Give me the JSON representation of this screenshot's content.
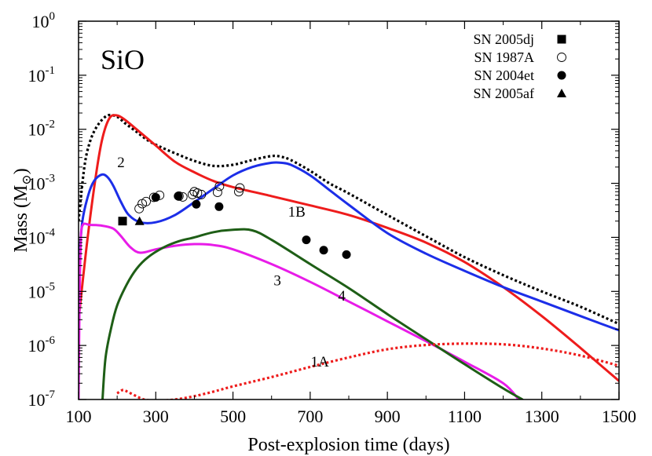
{
  "chart_data": {
    "type": "line",
    "title": "SiO",
    "xlabel": "Post-explosion time (days)",
    "ylabel": "Mass (M",
    "ylabel_sub": "⊙",
    "ylabel_close": ")",
    "xscale": "linear",
    "yscale": "log",
    "xlim": [
      100,
      1500
    ],
    "ylim_exp": [
      -7,
      0
    ],
    "x_ticks": [
      100,
      300,
      500,
      700,
      900,
      1100,
      1300,
      1500
    ],
    "y_ticks": [
      {
        "exp": 0,
        "base": "10",
        "sup": "0"
      },
      {
        "exp": -1,
        "base": "10",
        "sup": "-1"
      },
      {
        "exp": -2,
        "base": "10",
        "sup": "-2"
      },
      {
        "exp": -3,
        "base": "10",
        "sup": "-3"
      },
      {
        "exp": -4,
        "base": "10",
        "sup": "-4"
      },
      {
        "exp": -5,
        "base": "10",
        "sup": "-5"
      },
      {
        "exp": -6,
        "base": "10",
        "sup": "-6"
      },
      {
        "exp": -7,
        "base": "10",
        "sup": "-7"
      }
    ],
    "series": [
      {
        "name": "total",
        "color": "#000000",
        "style": "dotted",
        "x": [
          100,
          115,
          130,
          150,
          175,
          200,
          220,
          250,
          280,
          310,
          350,
          400,
          450,
          500,
          550,
          600,
          625,
          650,
          700,
          750,
          800,
          900,
          1000,
          1100,
          1200,
          1300,
          1400,
          1500
        ],
        "y": [
          0.0002,
          0.002,
          0.006,
          0.012,
          0.018,
          0.017,
          0.013,
          0.009,
          0.0062,
          0.0048,
          0.0036,
          0.0026,
          0.0021,
          0.0022,
          0.0027,
          0.0032,
          0.0031,
          0.0027,
          0.0017,
          0.001,
          0.00065,
          0.00026,
          0.000105,
          4.3e-05,
          2e-05,
          1e-05,
          5.2e-06,
          2.5e-06
        ]
      },
      {
        "name": "red",
        "color": "#ee1c1c",
        "style": "solid",
        "x": [
          100,
          120,
          140,
          160,
          180,
          200,
          220,
          250,
          300,
          350,
          400,
          450,
          500,
          600,
          700,
          800,
          900,
          1000,
          1100,
          1200,
          1300,
          1400,
          1500
        ],
        "y": [
          3e-06,
          6e-05,
          0.0008,
          0.006,
          0.016,
          0.018,
          0.015,
          0.01,
          0.005,
          0.0025,
          0.0016,
          0.0011,
          0.00085,
          0.00058,
          0.00039,
          0.00026,
          0.00015,
          8e-05,
          3.5e-05,
          1.2e-05,
          3.5e-06,
          9e-07,
          2.2e-07
        ]
      },
      {
        "name": "1B",
        "color": "#1c2ee8",
        "style": "solid",
        "x": [
          100,
          110,
          125,
          140,
          160,
          175,
          190,
          210,
          230,
          260,
          300,
          350,
          400,
          450,
          500,
          550,
          600,
          625,
          650,
          700,
          750,
          800,
          900,
          1000,
          1100,
          1200,
          1300,
          1400,
          1500
        ],
        "y": [
          3e-05,
          0.0002,
          0.0006,
          0.0011,
          0.00145,
          0.0013,
          0.0009,
          0.00045,
          0.00026,
          0.00019,
          0.00019,
          0.00026,
          0.00045,
          0.0008,
          0.0014,
          0.002,
          0.0024,
          0.0024,
          0.0022,
          0.0014,
          0.00075,
          0.0004,
          0.00012,
          5e-05,
          2.4e-05,
          1.2e-05,
          6.5e-06,
          3.5e-06,
          1.9e-06
        ]
      },
      {
        "name": "3",
        "color": "#e81ce8",
        "style": "solid",
        "x": [
          100,
          102,
          105,
          110,
          130,
          160,
          190,
          210,
          235,
          260,
          300,
          350,
          400,
          450,
          500,
          600,
          700,
          800,
          900,
          1000,
          1100,
          1200,
          1240
        ],
        "y": [
          1e-07,
          3e-06,
          6e-05,
          0.000165,
          0.00017,
          0.000165,
          0.000145,
          0.000105,
          6.5e-05,
          5.2e-05,
          6e-05,
          7e-05,
          7.5e-05,
          7.2e-05,
          6e-05,
          3.2e-05,
          1.5e-05,
          6.5e-06,
          2.8e-06,
          1.2e-06,
          5e-07,
          2e-07,
          1e-07
        ]
      },
      {
        "name": "4",
        "color": "#1e5e16",
        "style": "solid",
        "x": [
          162,
          170,
          185,
          200,
          225,
          250,
          280,
          320,
          360,
          400,
          450,
          500,
          550,
          600,
          700,
          800,
          900,
          1000,
          1100,
          1200,
          1250
        ],
        "y": [
          1e-07,
          6e-07,
          2.2e-06,
          5.5e-06,
          1.35e-05,
          2.6e-05,
          4.3e-05,
          6.5e-05,
          8.5e-05,
          0.0001,
          0.000125,
          0.000138,
          0.000135,
          9e-05,
          3.2e-05,
          1.15e-05,
          3.8e-06,
          1.3e-06,
          4.5e-07,
          1.6e-07,
          1e-07
        ]
      },
      {
        "name": "1A",
        "color": "#ee1c1c",
        "style": "dotted",
        "x": [
          200,
          215,
          230,
          250,
          270,
          300,
          350,
          400,
          450,
          500,
          600,
          700,
          800,
          900,
          1000,
          1100,
          1200,
          1300,
          1400,
          1500
        ],
        "y": [
          1.3e-07,
          1.5e-07,
          1.35e-07,
          1.15e-07,
          1e-07,
          9.5e-08,
          1e-07,
          1.15e-07,
          1.4e-07,
          1.75e-07,
          2.6e-07,
          4e-07,
          6e-07,
          8.5e-07,
          1.02e-06,
          1.08e-06,
          1.05e-06,
          8.8e-07,
          6.5e-07,
          4.2e-07
        ]
      }
    ],
    "observations": [
      {
        "name": "SN 2005dj",
        "marker": "square-filled",
        "x": [
          214
        ],
        "y": [
          0.0002
        ]
      },
      {
        "name": "SN 1987A",
        "marker": "circle-open",
        "x": [
          257,
          265,
          275,
          295,
          310,
          360,
          370,
          395,
          400,
          408,
          418,
          460,
          465,
          515,
          518
        ],
        "y": [
          0.00034,
          0.00042,
          0.00046,
          0.00055,
          0.0006,
          0.00058,
          0.00056,
          0.00062,
          0.0007,
          0.00066,
          0.00062,
          0.00068,
          0.00088,
          0.0007,
          0.00082
        ]
      },
      {
        "name": "SN 2004et",
        "marker": "circle-filled",
        "x": [
          300,
          358,
          405,
          464,
          690,
          735,
          794
        ],
        "y": [
          0.00055,
          0.00058,
          0.00041,
          0.00037,
          9e-05,
          5.8e-05,
          4.8e-05
        ]
      },
      {
        "name": "SN 2005af",
        "marker": "triangle-filled",
        "x": [
          258
        ],
        "y": [
          0.0002
        ]
      }
    ],
    "curve_labels": [
      {
        "text": "2",
        "x": 210,
        "y": 0.002
      },
      {
        "text": "1B",
        "x": 665,
        "y": 0.00024
      },
      {
        "text": "3",
        "x": 615,
        "y": 1.3e-05
      },
      {
        "text": "4",
        "x": 782,
        "y": 6.8e-06
      },
      {
        "text": "1A",
        "x": 725,
        "y": 4.1e-07
      }
    ],
    "legend_position": "top-right",
    "legend": [
      "SN 2005dj",
      "SN 1987A",
      "SN 2004et",
      "SN 2005af"
    ]
  }
}
